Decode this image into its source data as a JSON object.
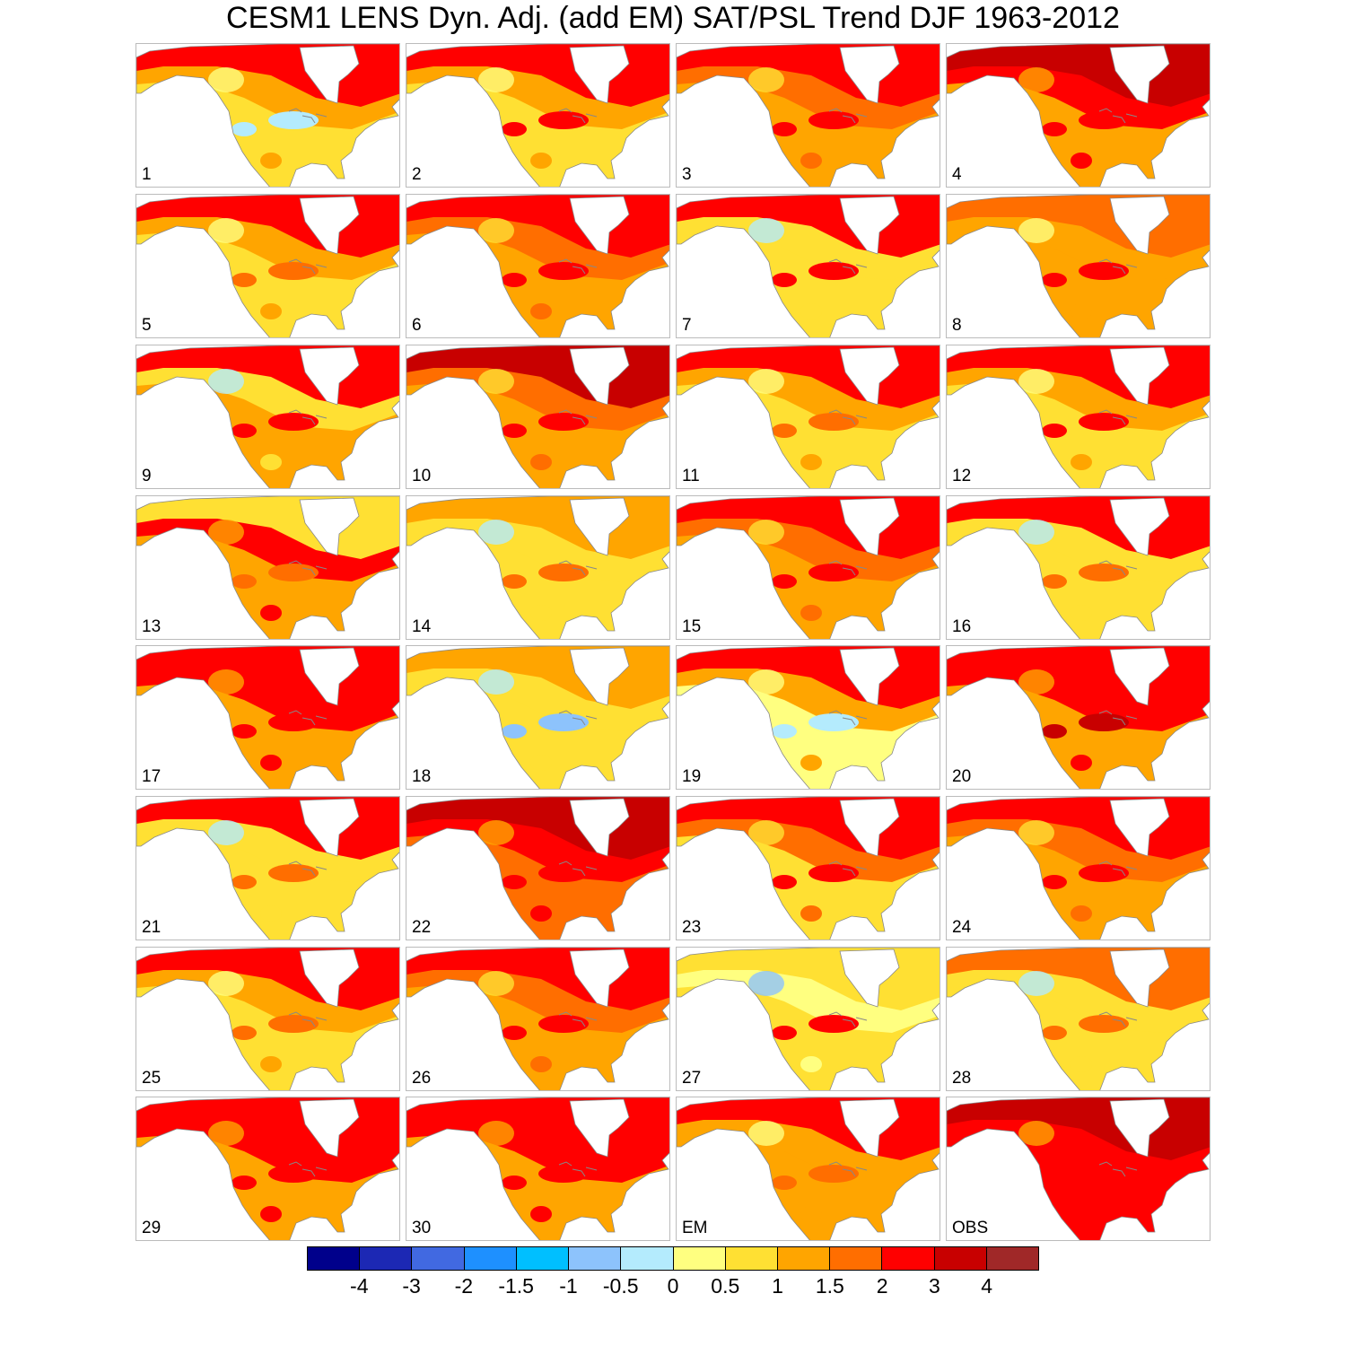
{
  "title": "CESM1 LENS Dyn. Adj. (add EM) SAT/PSL Trend DJF 1963-2012",
  "panels": [
    "1",
    "2",
    "3",
    "4",
    "5",
    "6",
    "7",
    "8",
    "9",
    "10",
    "11",
    "12",
    "13",
    "14",
    "15",
    "16",
    "17",
    "18",
    "19",
    "20",
    "21",
    "22",
    "23",
    "24",
    "25",
    "26",
    "27",
    "28",
    "29",
    "30",
    "EM",
    "OBS"
  ],
  "colorbar": {
    "colors": [
      "#00008b",
      "#1c28b4",
      "#4169e1",
      "#1e90ff",
      "#00bfff",
      "#8dc3fc",
      "#b4ebfd",
      "#ffff80",
      "#ffe033",
      "#ffa500",
      "#ff6e00",
      "#ff0000",
      "#c80000",
      "#a02828"
    ],
    "labels": [
      "-4",
      "-3",
      "-2",
      "-1.5",
      "-1",
      "-0.5",
      "0",
      "0.5",
      "1",
      "1.5",
      "2",
      "3",
      "4"
    ]
  }
}
